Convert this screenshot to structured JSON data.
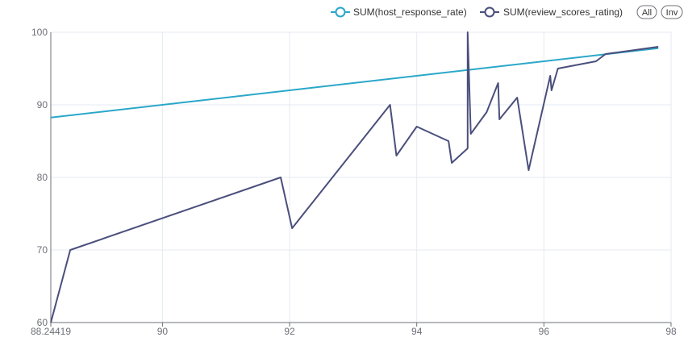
{
  "chart_data": {
    "type": "line",
    "title": "",
    "xlabel": "",
    "ylabel": "",
    "xlim": [
      88.24419,
      98
    ],
    "ylim": [
      60,
      100
    ],
    "x_ticks": [
      "88.24419",
      "90",
      "92",
      "94",
      "96",
      "98"
    ],
    "y_ticks": [
      "60",
      "70",
      "80",
      "90",
      "100"
    ],
    "grid": true,
    "legend_position": "top-right",
    "series": [
      {
        "name": "SUM(host_response_rate)",
        "color": "#2aa7c9",
        "points": [
          [
            88.24419,
            88.24419
          ],
          [
            97.8,
            97.8
          ]
        ]
      },
      {
        "name": "SUM(review_scores_rating)",
        "color": "#4a4f7c",
        "points": [
          [
            88.24419,
            60
          ],
          [
            88.55,
            70
          ],
          [
            91.86,
            80
          ],
          [
            92.04,
            73
          ],
          [
            93.58,
            90
          ],
          [
            93.68,
            83
          ],
          [
            94.0,
            87
          ],
          [
            94.5,
            85
          ],
          [
            94.55,
            82
          ],
          [
            94.8,
            84
          ],
          [
            94.8,
            100
          ],
          [
            94.85,
            86
          ],
          [
            95.1,
            89
          ],
          [
            95.28,
            93
          ],
          [
            95.3,
            88
          ],
          [
            95.58,
            91
          ],
          [
            95.76,
            81
          ],
          [
            96.1,
            94
          ],
          [
            96.12,
            92
          ],
          [
            96.22,
            95
          ],
          [
            96.82,
            96
          ],
          [
            96.97,
            97
          ],
          [
            97.8,
            98
          ]
        ]
      }
    ]
  },
  "controls": {
    "all_label": "All",
    "inv_label": "Inv"
  }
}
